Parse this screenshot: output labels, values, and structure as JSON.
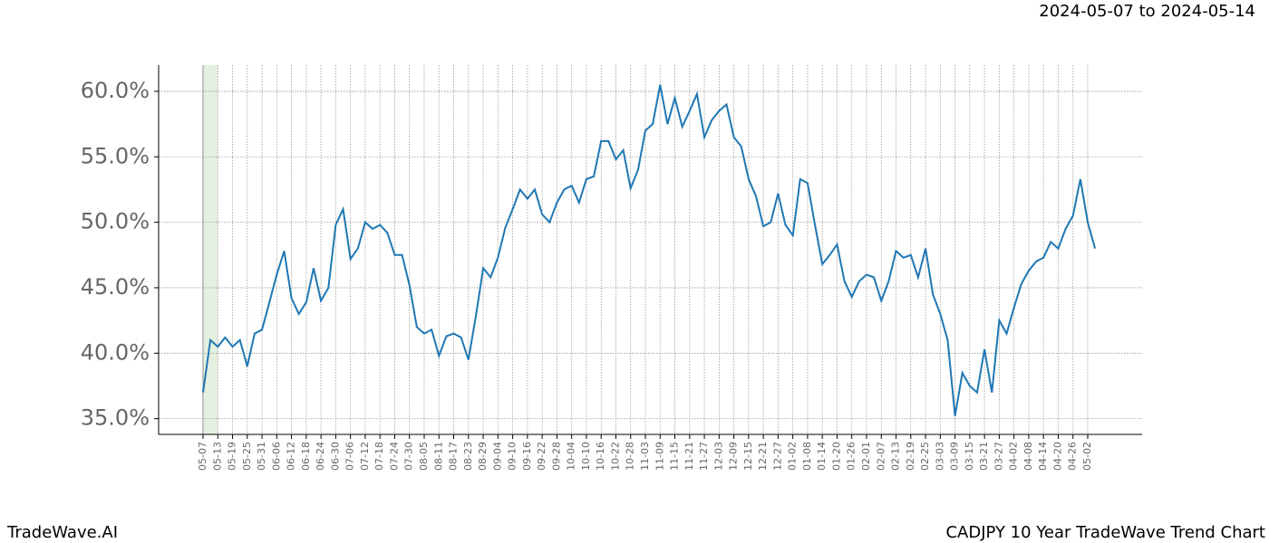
{
  "chart_data": {
    "type": "line",
    "subtitle": "2024-05-07 to 2024-05-14",
    "footer_left": "TradeWave.AI",
    "footer_right": "CADJPY 10 Year TradeWave Trend Chart",
    "categories": [
      "05-07",
      null,
      "05-13",
      null,
      "05-19",
      null,
      "05-25",
      null,
      "05-31",
      null,
      "06-06",
      null,
      "06-12",
      null,
      "06-18",
      null,
      "06-24",
      null,
      "06-30",
      null,
      "07-06",
      null,
      "07-12",
      null,
      "07-18",
      null,
      "07-24",
      null,
      "07-30",
      null,
      "08-05",
      null,
      "08-11",
      null,
      "08-17",
      null,
      "08-23",
      null,
      "08-29",
      null,
      "09-04",
      null,
      "09-10",
      null,
      "09-16",
      null,
      "09-22",
      null,
      "09-28",
      null,
      "10-04",
      null,
      "10-10",
      null,
      "10-16",
      null,
      "10-22",
      null,
      "10-28",
      null,
      "11-03",
      null,
      "11-09",
      null,
      "11-15",
      null,
      "11-21",
      null,
      "11-27",
      null,
      "12-03",
      null,
      "12-09",
      null,
      "12-15",
      null,
      "12-21",
      null,
      "12-27",
      null,
      "01-02",
      null,
      "01-08",
      null,
      "01-14",
      null,
      "01-20",
      null,
      "01-26",
      null,
      "02-01",
      null,
      "02-07",
      null,
      "02-13",
      null,
      "02-19",
      null,
      "02-25",
      null,
      "03-03",
      null,
      "03-09",
      null,
      "03-15",
      null,
      "03-21",
      null,
      "03-27",
      null,
      "04-02",
      null,
      "04-08",
      null,
      "04-14",
      null,
      "04-20",
      null,
      "04-26",
      null,
      "05-02",
      null
    ],
    "series": [
      {
        "color": "#1f77b4",
        "values": [
          37.0,
          41.0,
          40.5,
          41.2,
          40.5,
          41.0,
          39.0,
          41.5,
          41.8,
          43.9,
          46.0,
          47.8,
          44.2,
          43.0,
          43.9,
          46.5,
          44.0,
          45.0,
          49.8,
          51.0,
          47.2,
          48.0,
          50.0,
          49.5,
          49.8,
          49.2,
          47.5,
          47.5,
          45.2,
          42.0,
          41.5,
          41.8,
          39.8,
          41.3,
          41.5,
          41.2,
          39.5,
          42.8,
          46.5,
          45.8,
          47.3,
          49.6,
          51.0,
          52.5,
          51.8,
          52.5,
          50.6,
          50.0,
          51.5,
          52.5,
          52.8,
          51.5,
          53.3,
          53.5,
          56.2,
          56.2,
          54.8,
          55.5,
          52.6,
          54.0,
          57.0,
          57.5,
          60.5,
          57.5,
          59.5,
          57.3,
          58.5,
          59.8,
          56.5,
          57.8,
          58.5,
          59.0,
          56.5,
          55.8,
          53.3,
          52.0,
          49.7,
          50.0,
          52.2,
          49.8,
          49.0,
          53.3,
          53.0,
          49.8,
          46.8,
          47.5,
          48.3,
          45.5,
          44.3,
          45.5,
          46.0,
          45.8,
          44.0,
          45.5,
          47.8,
          47.3,
          47.5,
          45.8,
          48.0,
          44.5,
          43.0,
          41.0,
          35.2,
          38.5,
          37.5,
          37.0,
          40.3,
          37.0,
          42.5,
          41.5,
          43.5,
          45.3,
          46.3,
          47.0,
          47.3,
          48.5,
          48.0,
          49.5,
          50.5,
          53.3,
          50.0,
          48.0
        ]
      }
    ],
    "ylim": [
      33.8,
      62.0
    ],
    "yticks": [
      {
        "value": 35,
        "label": "35.0%"
      },
      {
        "value": 40,
        "label": "40.0%"
      },
      {
        "value": 45,
        "label": "45.0%"
      },
      {
        "value": 50,
        "label": "50.0%"
      },
      {
        "value": 55,
        "label": "55.0%"
      },
      {
        "value": 60,
        "label": "60.0%"
      }
    ],
    "grid": true
  }
}
